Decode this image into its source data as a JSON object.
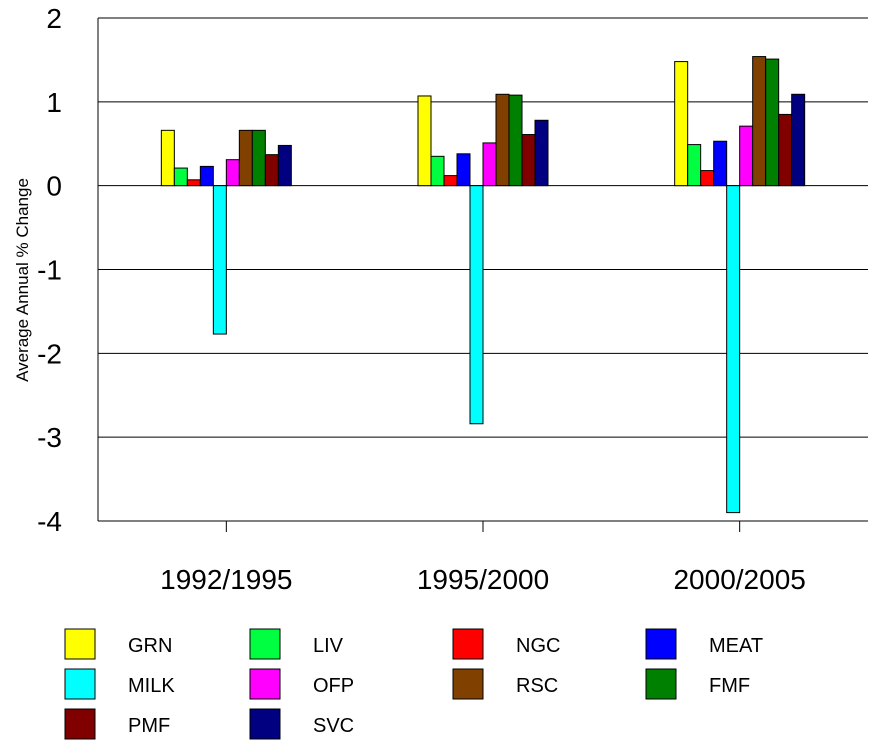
{
  "chart_data": {
    "type": "bar",
    "ylabel": "Average Annual % Change",
    "ylim": [
      -4,
      2
    ],
    "yticks": [
      "2",
      "1",
      "0",
      "-1",
      "-2",
      "-3",
      "-4"
    ],
    "grid": true,
    "legend_position": "bottom",
    "categories": [
      "1992/1995",
      "1995/2000",
      "2000/2005"
    ],
    "series": [
      {
        "name": "GRN",
        "color": "#ffff00",
        "values": [
          0.66,
          1.07,
          1.48
        ]
      },
      {
        "name": "LIV",
        "color": "#00ff40",
        "values": [
          0.21,
          0.35,
          0.49
        ]
      },
      {
        "name": "NGC",
        "color": "#ff0000",
        "values": [
          0.07,
          0.12,
          0.18
        ]
      },
      {
        "name": "MEAT",
        "color": "#0000ff",
        "values": [
          0.23,
          0.38,
          0.53
        ]
      },
      {
        "name": "MILK",
        "color": "#00ffff",
        "values": [
          -1.77,
          -2.84,
          -3.9
        ]
      },
      {
        "name": "OFP",
        "color": "#ff00ff",
        "values": [
          0.31,
          0.51,
          0.71
        ]
      },
      {
        "name": "RSC",
        "color": "#804000",
        "values": [
          0.66,
          1.09,
          1.54
        ]
      },
      {
        "name": "FMF",
        "color": "#008000",
        "values": [
          0.66,
          1.08,
          1.51
        ]
      },
      {
        "name": "PMF",
        "color": "#800000",
        "values": [
          0.37,
          0.61,
          0.85
        ]
      },
      {
        "name": "SVC",
        "color": "#000080",
        "values": [
          0.48,
          0.78,
          1.09
        ]
      }
    ]
  }
}
